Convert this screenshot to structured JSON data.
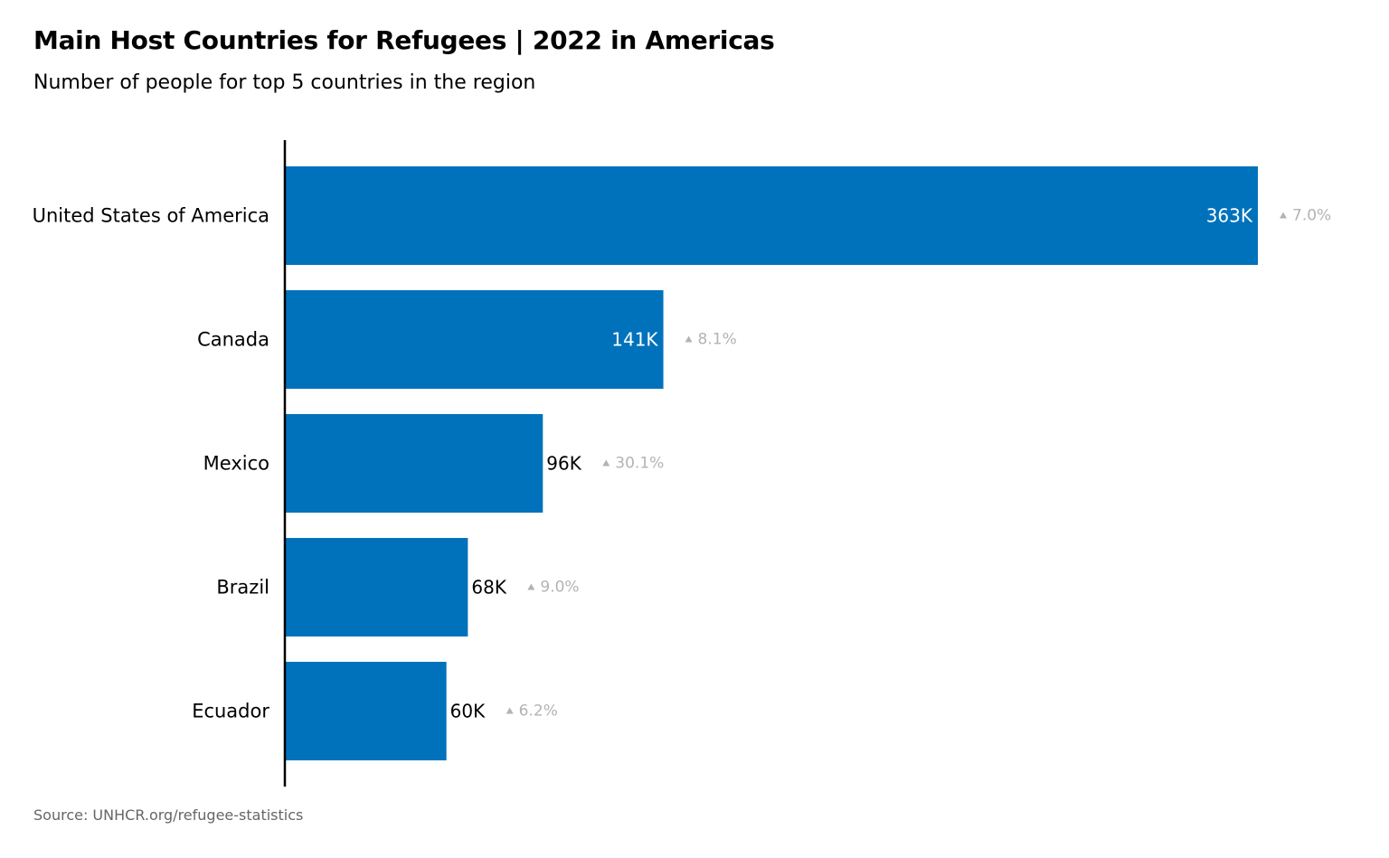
{
  "title": "Main Host Countries for Refugees | 2022 in Americas",
  "subtitle": "Number of people for top 5 countries in the region",
  "source": "Source: UNHCR.org/refugee-statistics",
  "colors": {
    "bar": "#0072BC",
    "axis": "#000000",
    "change_label": "#b3b3b3",
    "value_inside": "#ffffff",
    "value_outside": "#000000"
  },
  "chart_data": {
    "type": "bar",
    "orientation": "horizontal",
    "title": "Main Host Countries for Refugees | 2022 in Americas",
    "subtitle": "Number of people for top 5 countries in the region",
    "categories": [
      "United States of America",
      "Canada",
      "Mexico",
      "Brazil",
      "Ecuador"
    ],
    "values": [
      363000,
      141000,
      96000,
      68000,
      60000
    ],
    "value_labels": [
      "363K",
      "141K",
      "96K",
      "68K",
      "60K"
    ],
    "change_labels": [
      "7.0%",
      "8.1%",
      "30.1%",
      "9.0%",
      "6.2%"
    ],
    "change_direction": [
      "up",
      "up",
      "up",
      "up",
      "up"
    ],
    "xlim": [
      0,
      363000
    ],
    "grid": false,
    "legend": "none"
  }
}
